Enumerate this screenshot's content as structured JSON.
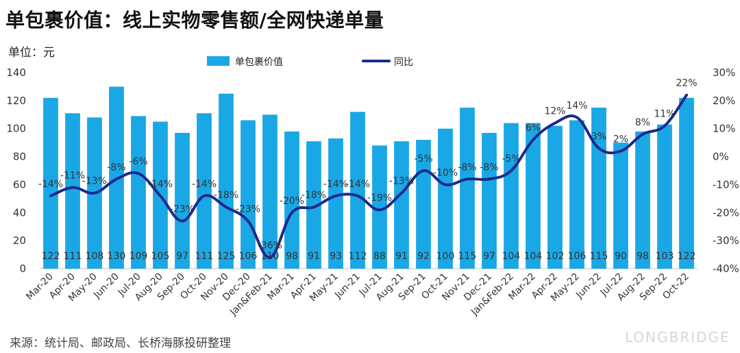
{
  "page": {
    "title": "单包裹价值：线上实物零售额/全网快递单量",
    "unit": "单位：元",
    "source": "来源：统计局、邮政局、长桥海豚投研整理",
    "watermark": "LONGBRIDGE"
  },
  "colors": {
    "bar": "#1aa7e6",
    "line": "#1b2a8c",
    "axis": "#bfbfbf"
  },
  "chart_data": {
    "type": "bar",
    "categories": [
      "Mar-20",
      "Apr-20",
      "May-20",
      "Jun-20",
      "Jul-20",
      "Aug-20",
      "Sep-20",
      "Oct-20",
      "Nov-20",
      "Dec-20",
      "Jan&Feb-21",
      "Mar-21",
      "Apr-21",
      "May-21",
      "Jun-21",
      "Jul-21",
      "Aug-21",
      "Sep-21",
      "Oct-21",
      "Nov-21",
      "Dec-21",
      "Jan&Feb-22",
      "Mar-22",
      "Apr-22",
      "May-22",
      "Jun-22",
      "Jul-22",
      "Aug-22",
      "Sep-22",
      "Oct-22"
    ],
    "series": [
      {
        "name": "单包裹价值",
        "type": "bar",
        "axis": "left",
        "values": [
          122,
          111,
          108,
          130,
          109,
          105,
          97,
          111,
          125,
          106,
          110,
          98,
          91,
          93,
          112,
          88,
          91,
          92,
          100,
          115,
          97,
          104,
          104,
          102,
          106,
          115,
          90,
          98,
          103,
          122
        ],
        "labels": [
          "122",
          "111",
          "108",
          "130",
          "109",
          "105",
          "97",
          "111",
          "125",
          "106",
          "110",
          "98",
          "91",
          "93",
          "112",
          "88",
          "91",
          "92",
          "100",
          "115",
          "97",
          "104",
          "104",
          "102",
          "106",
          "115",
          "90",
          "98",
          "103",
          "122"
        ]
      },
      {
        "name": "同比",
        "type": "line",
        "axis": "right",
        "values": [
          -14,
          -11,
          -13,
          -8,
          -6,
          -14,
          -23,
          -14,
          -18,
          -23,
          -36,
          -20,
          -18,
          -14,
          -14,
          -19,
          -13,
          -5,
          -10,
          -8,
          -8,
          -5,
          6,
          12,
          14,
          3,
          2,
          8,
          11,
          22
        ],
        "labels": [
          "-14%",
          "-11%",
          "-13%",
          "-8%",
          "-6%",
          "-14%",
          "-23%",
          "-14%",
          "-18%",
          "-23%",
          "-36%",
          "-20%",
          "-18%",
          "-14%",
          "-14%",
          "-19%",
          "-13%",
          "-5%",
          "-10%",
          "-8%",
          "-8%",
          "-5%",
          "6%",
          "12%",
          "14%",
          "3%",
          "2%",
          "8%",
          "11%",
          "22%"
        ]
      }
    ],
    "y_left": {
      "ylim": [
        0,
        140
      ],
      "ticks": [
        "0",
        "20",
        "40",
        "60",
        "80",
        "100",
        "120",
        "140"
      ]
    },
    "y_right": {
      "ylim": [
        -40,
        30
      ],
      "ticks": [
        "-40%",
        "-30%",
        "-20%",
        "-10%",
        "0%",
        "10%",
        "20%",
        "30%"
      ]
    },
    "legend": {
      "position": "top-center",
      "items": [
        "单包裹价值",
        "同比"
      ]
    }
  }
}
